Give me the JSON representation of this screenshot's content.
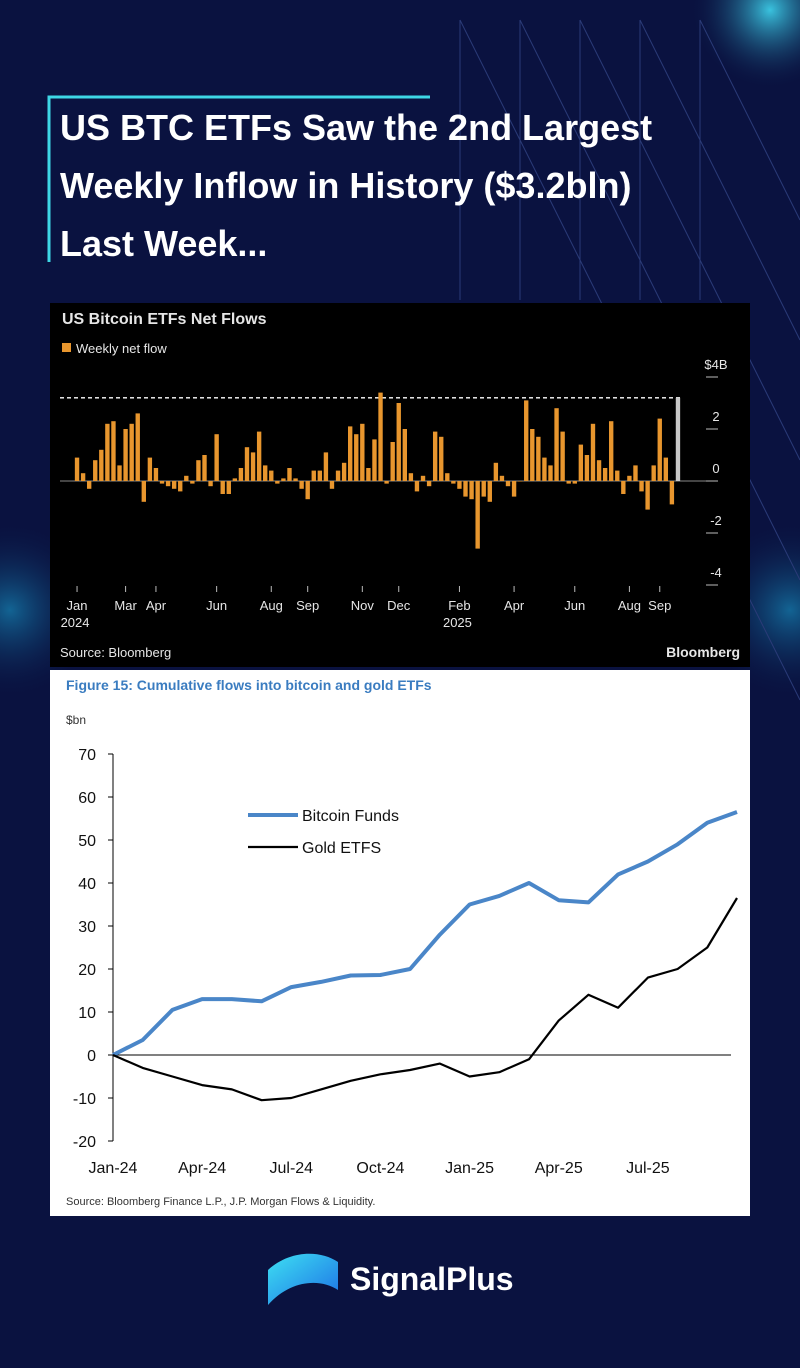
{
  "headline": [
    "US BTC ETFs Saw the 2nd Largest",
    "Weekly Inflow in History ($3.2bln)",
    "Last Week..."
  ],
  "brand": "SignalPlus",
  "chart_data": [
    {
      "type": "bar",
      "title": "US Bitcoin ETFs Net Flows",
      "series": [
        {
          "name": "Weekly net flow",
          "color": "#e8962e",
          "last_color": "#c8c8c8",
          "values": [
            0.9,
            0.3,
            -0.3,
            0.8,
            1.2,
            2.2,
            2.3,
            0.6,
            2.0,
            2.2,
            2.6,
            -0.8,
            0.9,
            0.5,
            -0.1,
            -0.2,
            -0.3,
            -0.4,
            0.2,
            -0.1,
            0.8,
            1.0,
            -0.2,
            1.8,
            -0.5,
            -0.5,
            0.1,
            0.5,
            1.3,
            1.1,
            1.9,
            0.6,
            0.4,
            -0.1,
            0.1,
            0.5,
            0.1,
            -0.3,
            -0.7,
            0.4,
            0.4,
            1.1,
            -0.3,
            0.4,
            0.7,
            2.1,
            1.8,
            2.2,
            0.5,
            1.6,
            3.4,
            -0.1,
            1.5,
            3.0,
            2.0,
            0.3,
            -0.4,
            0.2,
            -0.2,
            1.9,
            1.7,
            0.3,
            -0.1,
            -0.3,
            -0.6,
            -0.7,
            -2.6,
            -0.6,
            -0.8,
            0.7,
            0.2,
            -0.2,
            -0.6,
            0,
            3.1,
            2.0,
            1.7,
            0.9,
            0.6,
            2.8,
            1.9,
            -0.1,
            -0.1,
            1.4,
            1.0,
            2.2,
            0.8,
            0.5,
            2.3,
            0.4,
            -0.5,
            0.2,
            0.6,
            -0.4,
            -1.1,
            0.6,
            2.4,
            0.9,
            -0.9,
            3.2
          ]
        }
      ],
      "categories": [
        "Jan",
        null,
        null,
        null,
        null,
        null,
        null,
        null,
        "Mar",
        null,
        null,
        null,
        null,
        "Apr",
        null,
        null,
        null,
        null,
        null,
        null,
        null,
        null,
        null,
        "Jun",
        null,
        null,
        null,
        null,
        null,
        null,
        null,
        null,
        "Aug",
        null,
        null,
        null,
        null,
        null,
        "Sep",
        null,
        null,
        null,
        null,
        null,
        null,
        null,
        null,
        "Nov",
        null,
        null,
        null,
        null,
        null,
        "Dec",
        null,
        null,
        null,
        null,
        null,
        null,
        null,
        null,
        null,
        "Feb",
        null,
        null,
        null,
        null,
        null,
        null,
        null,
        null,
        "Apr",
        null,
        null,
        null,
        null,
        null,
        null,
        null,
        null,
        null,
        "Jun",
        null,
        null,
        null,
        null,
        null,
        null,
        null,
        null,
        "Aug",
        null,
        null,
        null,
        null,
        "Sep",
        null,
        null,
        null
      ],
      "category_years": [
        "2024",
        null,
        null,
        null,
        null,
        null,
        null,
        null,
        null,
        null,
        null,
        null,
        null,
        null,
        null,
        null,
        null,
        null,
        null,
        null,
        null,
        null,
        null,
        null,
        null,
        null,
        null,
        null,
        null,
        null,
        null,
        null,
        null,
        null,
        null,
        null,
        null,
        null,
        null,
        null,
        null,
        null,
        null,
        null,
        null,
        null,
        null,
        null,
        null,
        null,
        null,
        null,
        null,
        null,
        null,
        null,
        null,
        null,
        null,
        null,
        null,
        null,
        null,
        "2025",
        null,
        null,
        null,
        null,
        null,
        null,
        null,
        null,
        null,
        null,
        null,
        null,
        null,
        null,
        null,
        null,
        null,
        null,
        null,
        null,
        null,
        null,
        null,
        null,
        null,
        null,
        null,
        null,
        null,
        null,
        null,
        null,
        null,
        null
      ],
      "ylim": [
        -4.4,
        4.4
      ],
      "yticks": [
        -4,
        -2,
        0,
        2,
        {
          "value": 4,
          "label": "$4B"
        }
      ],
      "reference_line": 3.2,
      "source": "Source: Bloomberg",
      "credit": "Bloomberg"
    },
    {
      "type": "line",
      "title": "Figure 15: Cumulative flows into bitcoin and gold ETFs",
      "y_label": "$bn",
      "categories": [
        "Jan-24",
        null,
        null,
        "Apr-24",
        null,
        null,
        "Jul-24",
        null,
        null,
        "Oct-24",
        null,
        null,
        "Jan-25",
        null,
        null,
        "Apr-25",
        null,
        null,
        "Jul-25",
        null,
        null,
        null
      ],
      "series": [
        {
          "name": "Bitcoin Funds",
          "color": "#4a86c8",
          "values": [
            0,
            3.5,
            10.5,
            13,
            13,
            12.5,
            15.8,
            17,
            18.5,
            18.6,
            20,
            28,
            35,
            37,
            40,
            36,
            35.5,
            42,
            45,
            49,
            54,
            56.5
          ]
        },
        {
          "name": "Gold ETFS",
          "color": "#000000",
          "values": [
            0,
            -3,
            -5,
            -7,
            -8,
            -10.5,
            -10,
            -8,
            -6,
            -4.5,
            -3.5,
            -2,
            -5,
            -4,
            -1,
            8,
            14,
            11,
            18,
            20,
            25,
            36.5
          ]
        }
      ],
      "ylim": [
        -20,
        70
      ],
      "yticks": [
        -20,
        -10,
        0,
        10,
        20,
        30,
        40,
        50,
        60,
        70
      ],
      "source": "Source: Bloomberg Finance L.P., J.P. Morgan Flows & Liquidity."
    }
  ]
}
